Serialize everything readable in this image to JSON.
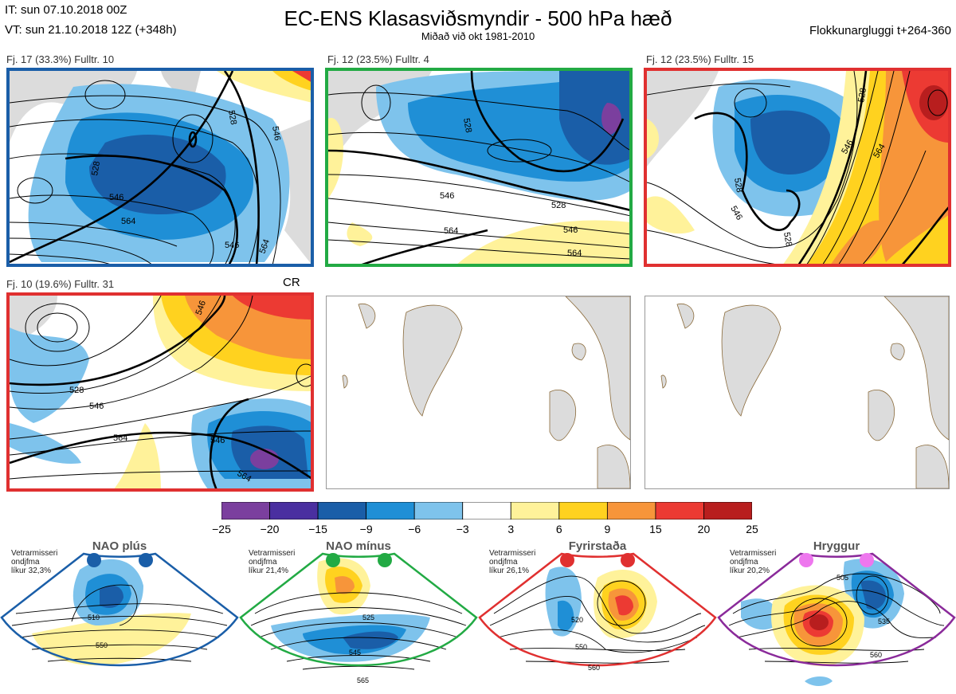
{
  "header": {
    "it_line": "IT: sun 07.10.2018 00Z",
    "vt_line": "VT: sun 21.10.2018 12Z  (+348h)",
    "title": "EC-ENS Klasasviðsmyndir - 500 hPa hæð",
    "subtitle": "Miðað við okt 1981-2010",
    "window": "Flokkunargluggi t+264-360"
  },
  "panels": [
    {
      "label": "Fj. 17 (33.3%)   Fulltr. 10",
      "border": "#1a5ea8",
      "extra": "",
      "contours": [
        "528",
        "546",
        "564",
        "546",
        "528",
        "546",
        "564"
      ]
    },
    {
      "label": "Fj. 12 (23.5%)   Fulltr. 4",
      "border": "#22aa44",
      "extra": "",
      "contours": [
        "528",
        "546",
        "528",
        "564",
        "546",
        "564"
      ]
    },
    {
      "label": "Fj. 12 (23.5%)   Fulltr. 15",
      "border": "#e03030",
      "extra": "",
      "contours": [
        "528",
        "546",
        "528",
        "546",
        "564",
        "528"
      ]
    },
    {
      "label": "Fj. 10 (19.6%)   Fulltr. 31",
      "border": "#e03030",
      "extra": "CR",
      "contours": [
        "546",
        "528",
        "546",
        "564",
        "546",
        "564"
      ]
    }
  ],
  "colorbar": {
    "colors": [
      "#7b3f9e",
      "#4a2fa0",
      "#1a5ea8",
      "#1f8fd6",
      "#7ec3ec",
      "#ffffff",
      "#fff29a",
      "#ffd21f",
      "#f7953a",
      "#ec3a33",
      "#b81e1e"
    ],
    "ticks": [
      "−25",
      "−20",
      "−15",
      "−9",
      "−6",
      "−3",
      "3",
      "6",
      "9",
      "15",
      "20",
      "25"
    ]
  },
  "regimes": [
    {
      "name": "NAO plús",
      "desc": [
        "Vetrarmisseri",
        "ondjfma",
        "líkur 32,3%"
      ],
      "border": "#1a5ea8",
      "dot": "#1a5ea8",
      "contours": [
        "510",
        "550"
      ]
    },
    {
      "name": "NAO mínus",
      "desc": [
        "Vetrarmisseri",
        "ondjfma",
        "líkur 21,4%"
      ],
      "border": "#22aa44",
      "dot": "#22aa44",
      "contours": [
        "525",
        "545",
        "565"
      ]
    },
    {
      "name": "Fyrirstaða",
      "desc": [
        "Vetrarmisseri",
        "ondjfma",
        "líkur 26,1%"
      ],
      "border": "#e03030",
      "dot": "#e03030",
      "contours": [
        "520",
        "550",
        "560"
      ]
    },
    {
      "name": "Hryggur",
      "desc": [
        "Vetrarmisseri",
        "ondjfma",
        "líkur 20,2%"
      ],
      "border": "#8a2a9a",
      "dot": "#ee77ee",
      "contours": [
        "505",
        "535",
        "560"
      ]
    }
  ]
}
